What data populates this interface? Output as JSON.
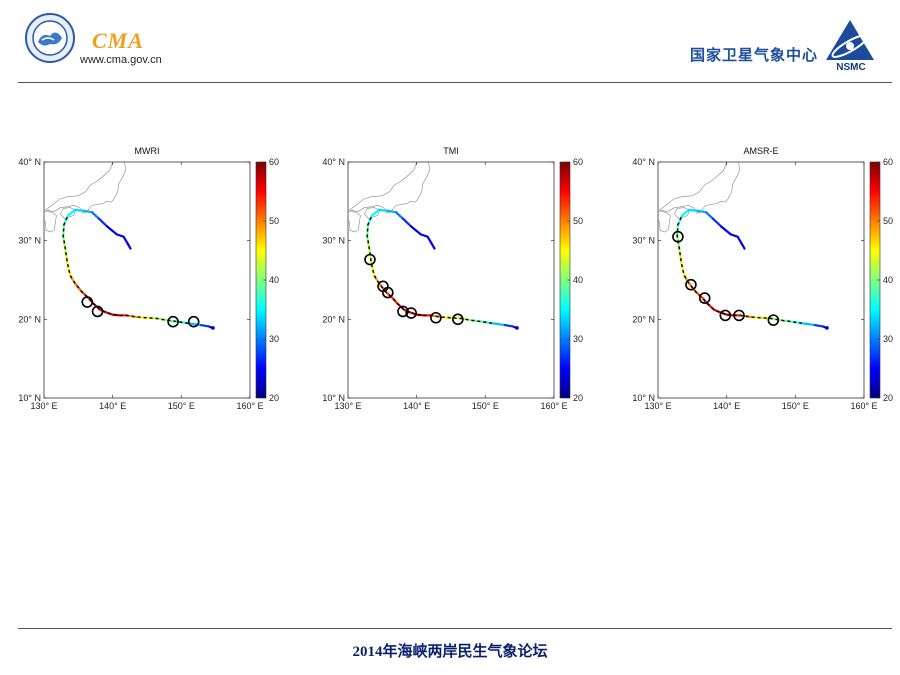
{
  "header": {
    "cma_text": "CMA",
    "cma_url": "www.cma.gov.cn",
    "nsmc_cn": "国家卫星气象中心",
    "nsmc_label": "NSMC"
  },
  "footer": {
    "text": "2014年海峡两岸民生气象论坛"
  },
  "chart_data": [
    {
      "type": "line",
      "title": "MWRI",
      "xlim": [
        130,
        160
      ],
      "ylim": [
        10,
        40
      ],
      "xticks": [
        "130° E",
        "140° E",
        "150° E",
        "160° E"
      ],
      "yticks": [
        "10° N",
        "20° N",
        "30° N",
        "40° N"
      ],
      "colorbar": {
        "min": 20,
        "max": 60,
        "ticks": [
          "20",
          "30",
          "40",
          "50",
          "60"
        ]
      },
      "circles": [
        [
          136.3,
          22.2
        ],
        [
          137.8,
          21.0
        ],
        [
          148.8,
          19.7
        ],
        [
          151.8,
          19.7
        ]
      ]
    },
    {
      "type": "line",
      "title": "TMI",
      "xlim": [
        130,
        160
      ],
      "ylim": [
        10,
        40
      ],
      "xticks": [
        "130° E",
        "140° E",
        "150° E",
        "160° E"
      ],
      "yticks": [
        "10° N",
        "20° N",
        "30° N",
        "40° N"
      ],
      "colorbar": {
        "min": 20,
        "max": 60,
        "ticks": [
          "20",
          "30",
          "40",
          "50",
          "60"
        ]
      },
      "circles": [
        [
          133.2,
          27.6
        ],
        [
          135.1,
          24.2
        ],
        [
          135.8,
          23.4
        ],
        [
          138.0,
          21.0
        ],
        [
          139.2,
          20.8
        ],
        [
          142.8,
          20.2
        ],
        [
          146.0,
          20.0
        ]
      ]
    },
    {
      "type": "line",
      "title": "AMSR-E",
      "xlim": [
        130,
        160
      ],
      "ylim": [
        10,
        40
      ],
      "xticks": [
        "130° E",
        "140° E",
        "150° E",
        "160° E"
      ],
      "yticks": [
        "10° N",
        "20° N",
        "30° N",
        "40° N"
      ],
      "colorbar": {
        "min": 20,
        "max": 60,
        "ticks": [
          "20",
          "30",
          "40",
          "50",
          "60"
        ]
      },
      "circles": [
        [
          132.9,
          30.5
        ],
        [
          134.8,
          24.4
        ],
        [
          136.8,
          22.7
        ],
        [
          139.8,
          20.5
        ],
        [
          141.8,
          20.5
        ],
        [
          146.8,
          19.9
        ]
      ]
    }
  ],
  "track": [
    [
      154.6,
      18.9,
      22
    ],
    [
      154.0,
      19.1,
      24
    ],
    [
      152.6,
      19.3,
      30
    ],
    [
      151.0,
      19.5,
      35
    ],
    [
      149.5,
      19.7,
      38
    ],
    [
      147.8,
      19.9,
      40
    ],
    [
      146.5,
      20.1,
      42
    ],
    [
      145.0,
      20.2,
      44
    ],
    [
      143.5,
      20.3,
      47
    ],
    [
      142.0,
      20.5,
      52
    ],
    [
      141.0,
      20.5,
      56
    ],
    [
      140.0,
      20.6,
      58
    ],
    [
      139.0,
      20.9,
      57
    ],
    [
      138.2,
      21.2,
      55
    ],
    [
      137.2,
      22.0,
      54
    ],
    [
      136.5,
      22.7,
      53
    ],
    [
      135.5,
      23.5,
      52
    ],
    [
      134.5,
      24.6,
      50
    ],
    [
      133.8,
      25.6,
      47
    ],
    [
      133.4,
      27.2,
      44
    ],
    [
      133.1,
      29.0,
      42
    ],
    [
      132.8,
      30.6,
      40
    ],
    [
      132.9,
      32.0,
      38
    ],
    [
      133.5,
      33.2,
      36
    ],
    [
      134.5,
      33.9,
      34
    ],
    [
      135.8,
      33.8,
      33
    ],
    [
      137.0,
      33.6,
      31
    ],
    [
      138.0,
      32.8,
      28
    ],
    [
      139.2,
      31.8,
      25
    ],
    [
      140.6,
      30.8,
      23
    ],
    [
      141.6,
      30.5,
      24
    ],
    [
      142.2,
      29.6,
      25
    ],
    [
      142.6,
      29.0,
      22
    ]
  ],
  "colors": {
    "colormap": [
      "#00007f",
      "#0000ff",
      "#007fff",
      "#00ffff",
      "#7fff7f",
      "#ffff00",
      "#ff7f00",
      "#ff0000",
      "#7f0000"
    ],
    "header_orange": "#f0a020",
    "header_blue": "#1e4f9c",
    "footer_blue": "#0a1f6e"
  }
}
